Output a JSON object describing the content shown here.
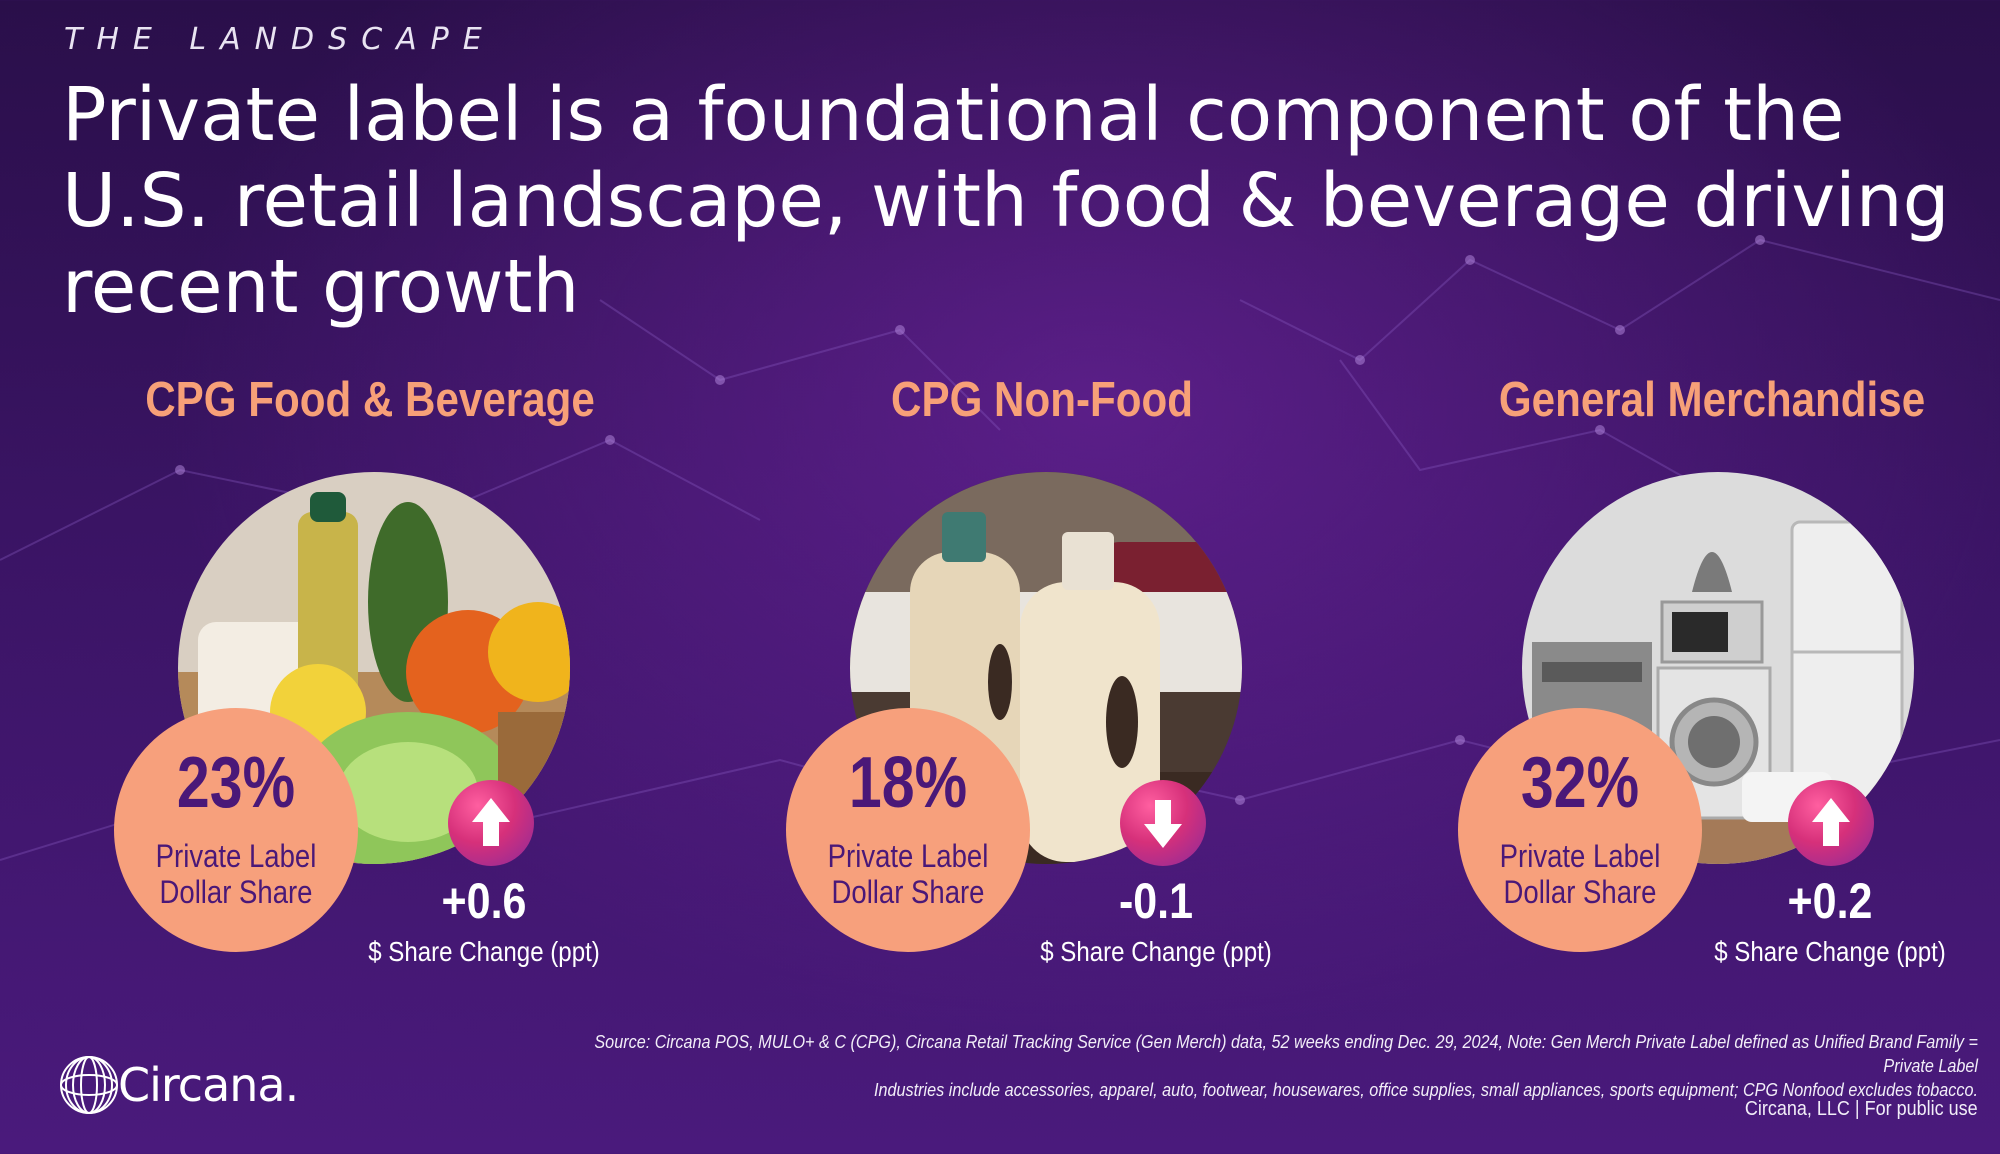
{
  "eyebrow": "THE LANDSCAPE",
  "headline": "Private label is a foundational component of the U.S. retail landscape, with food & beverage driving recent growth",
  "sections": [
    {
      "title": "CPG Food & Beverage",
      "image": "groceries-photo",
      "share_value": "23%",
      "share_label_line1": "Private Label",
      "share_label_line2": "Dollar Share",
      "direction": "up",
      "change_value": "+0.6",
      "change_label": "$ Share Change (ppt)"
    },
    {
      "title": "CPG Non-Food",
      "image": "detergent-bottles-photo",
      "share_value": "18%",
      "share_label_line1": "Private Label",
      "share_label_line2": "Dollar Share",
      "direction": "down",
      "change_value": "-0.1",
      "change_label": "$ Share Change (ppt)"
    },
    {
      "title": "General Merchandise",
      "image": "appliances-photo",
      "share_value": "32%",
      "share_label_line1": "Private Label",
      "share_label_line2": "Dollar Share",
      "direction": "up",
      "change_value": "+0.2",
      "change_label": "$ Share Change (ppt)"
    }
  ],
  "source_line1": "Source: Circana POS, MULO+ & C (CPG), Circana Retail Tracking Service (Gen Merch) data, 52 weeks ending Dec. 29, 2024, Note: Gen Merch Private Label defined as Unified Brand Family = Private Label",
  "source_line2": "Industries include accessories, apparel, auto, footwear, housewares, office supplies, small appliances, sports equipment; CPG Nonfood excludes tobacco.",
  "footer": "Circana, LLC |  For public use",
  "logo_text": "Circana.",
  "colors": {
    "accent": "#f7a07c",
    "share_text": "#4a1878",
    "badge": "#d6307a",
    "background": "#3a1464"
  }
}
